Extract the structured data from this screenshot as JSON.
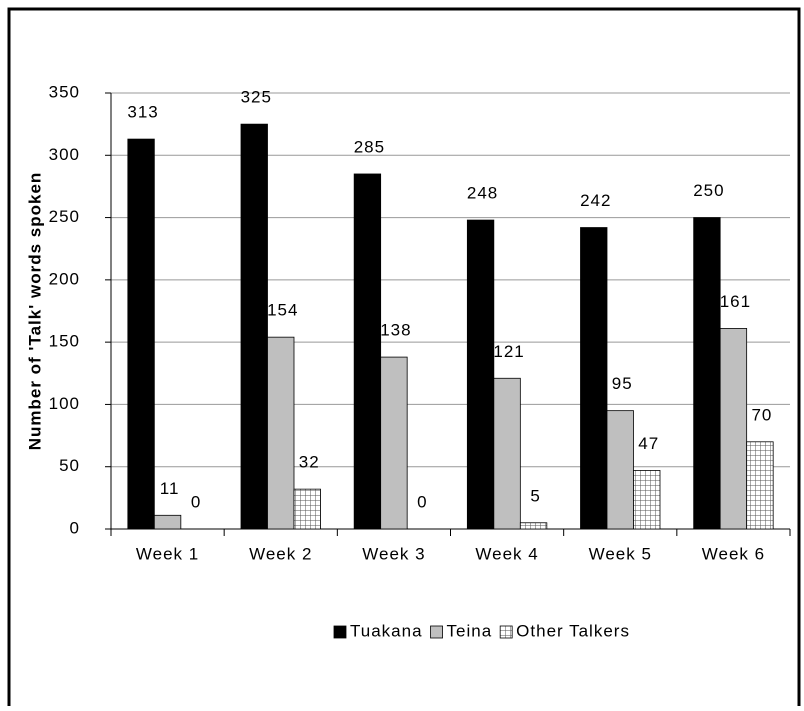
{
  "chart_data": {
    "type": "bar",
    "ylabel": "Number of 'Talk' words spoken",
    "categories": [
      "Week 1",
      "Week 2",
      "Week 3",
      "Week 4",
      "Week 5",
      "Week 6"
    ],
    "series": [
      {
        "name": "Tuakana",
        "color": "#000000",
        "values": [
          313,
          325,
          285,
          248,
          242,
          250
        ]
      },
      {
        "name": "Teina",
        "color": "#bfbfbf",
        "values": [
          11,
          154,
          138,
          121,
          95,
          161
        ]
      },
      {
        "name": "Other Talkers",
        "color": "pattern",
        "values": [
          0,
          32,
          0,
          5,
          47,
          70
        ]
      }
    ],
    "ylim": [
      0,
      350
    ],
    "yticks": [
      0,
      50,
      100,
      150,
      200,
      250,
      300,
      350
    ],
    "grid": true,
    "legend": "bottom"
  }
}
